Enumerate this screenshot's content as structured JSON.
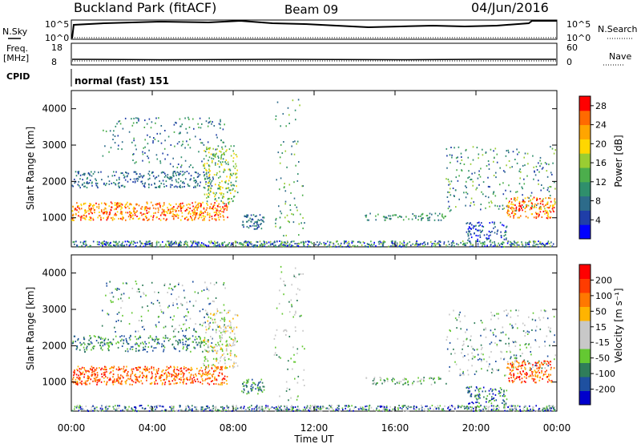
{
  "header": {
    "station": "Buckland Park (fitACF)",
    "beam": "Beam 09",
    "date": "04/Jun/2016"
  },
  "strips": {
    "nsky_label": "N.Sky",
    "nsky_ticks": [
      "10^5",
      "10^0"
    ],
    "nsearch_label": "N.Search",
    "nsearch_ticks": [
      "10^5",
      "10^0"
    ],
    "freq_label": "Freq.",
    "freq_unit": "[MHz]",
    "freq_ticks": [
      "18",
      "8"
    ],
    "nave_label": "Nave",
    "nave_ticks": [
      "60",
      "0"
    ],
    "cpid_label": "CPID",
    "cpid_value": "normal (fast) 151"
  },
  "colors": {
    "power_scale": [
      "#0000ff",
      "#1f3ea8",
      "#2d6b8a",
      "#2f8f6c",
      "#4cae4c",
      "#9acd32",
      "#ffd700",
      "#ffa500",
      "#ff6a00",
      "#ff0000"
    ],
    "velocity_scale": [
      "#0000cc",
      "#1e50a0",
      "#2f7d5a",
      "#64c832",
      "#c8c8c8",
      "#c8c8c8",
      "#ffb400",
      "#ff7800",
      "#ff3c00",
      "#ff0000"
    ]
  },
  "chart_data": [
    {
      "type": "heatmap",
      "title": "Power",
      "ylabel": "Slant Range [km]",
      "yticks": [
        "1000",
        "2000",
        "3000",
        "4000"
      ],
      "ylim": [
        200,
        4500
      ],
      "colorbar_label": "Power [dB]",
      "colorbar_ticks": [
        "4",
        "8",
        "12",
        "16",
        "20",
        "24",
        "28"
      ],
      "colorbar_range": [
        0,
        30
      ]
    },
    {
      "type": "heatmap",
      "title": "Velocity",
      "ylabel": "Slant Range [km]",
      "yticks": [
        "1000",
        "2000",
        "3000",
        "4000"
      ],
      "ylim": [
        200,
        4500
      ],
      "colorbar_label": "Velocity [m s⁻¹]",
      "colorbar_ticks": [
        "200",
        "100",
        "50",
        "15",
        "-15",
        "-50",
        "-100",
        "-200"
      ],
      "xlabel": "Time UT",
      "xticks": [
        "00:00",
        "04:00",
        "08:00",
        "12:00",
        "16:00",
        "20:00",
        "00:00"
      ]
    }
  ]
}
